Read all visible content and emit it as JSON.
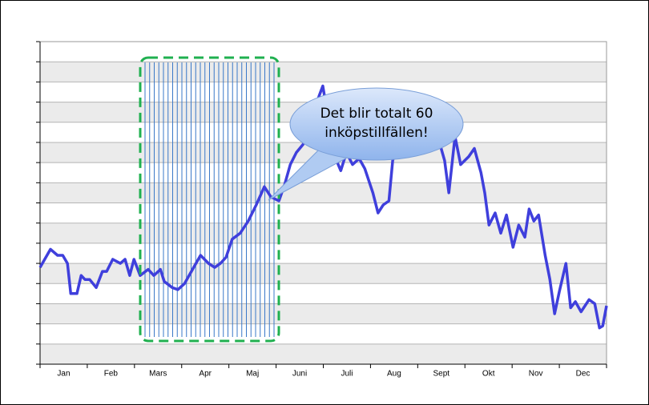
{
  "chart_data": {
    "type": "line",
    "annotation": [
      "Det blir totalt 60",
      "inköpstillfällen!"
    ],
    "categories": [
      "Jan",
      "Feb",
      "Mars",
      "Apr",
      "Maj",
      "Juni",
      "Juli",
      "Aug",
      "Sept",
      "Okt",
      "Nov",
      "Dec"
    ],
    "xlim": [
      0,
      12
    ],
    "ylim": [
      0,
      16
    ],
    "yticks": [
      0,
      1,
      2,
      3,
      4,
      5,
      6,
      7,
      8,
      9,
      10,
      11,
      12,
      13,
      14,
      15,
      16
    ],
    "grid": true,
    "series": [
      {
        "color": "#3f3fdc",
        "x": [
          0,
          0.22,
          0.37,
          0.48,
          0.58,
          0.65,
          0.78,
          0.87,
          0.95,
          1.05,
          1.19,
          1.32,
          1.41,
          1.54,
          1.7,
          1.8,
          1.9,
          1.99,
          2.12,
          2.29,
          2.41,
          2.55,
          2.63,
          2.8,
          2.92,
          3.06,
          3.23,
          3.4,
          3.57,
          3.7,
          3.82,
          3.94,
          4.07,
          4.24,
          4.41,
          4.58,
          4.75,
          4.89,
          5.06,
          5.18,
          5.3,
          5.43,
          5.57,
          5.69,
          5.81,
          5.91,
          5.99,
          6.11,
          6.28,
          6.37,
          6.49,
          6.62,
          6.76,
          6.88,
          7.05,
          7.16,
          7.27,
          7.39,
          7.47,
          7.56,
          7.67,
          7.89,
          8.15,
          8.4,
          8.57,
          8.66,
          8.79,
          8.91,
          9.08,
          9.2,
          9.34,
          9.42,
          9.51,
          9.64,
          9.76,
          9.88,
          10.02,
          10.14,
          10.27,
          10.36,
          10.46,
          10.56,
          10.7,
          10.8,
          10.9,
          11.0,
          11.14,
          11.24,
          11.34,
          11.46,
          11.63,
          11.75,
          11.85,
          11.92,
          12.0
        ],
        "values": [
          4.8,
          5.7,
          5.4,
          5.4,
          5.0,
          3.5,
          3.5,
          4.4,
          4.2,
          4.2,
          3.8,
          4.6,
          4.6,
          5.2,
          5.0,
          5.2,
          4.4,
          5.2,
          4.4,
          4.7,
          4.4,
          4.7,
          4.1,
          3.8,
          3.7,
          4.0,
          4.7,
          5.4,
          5.0,
          4.8,
          5.0,
          5.3,
          6.2,
          6.5,
          7.1,
          7.9,
          8.8,
          8.3,
          8.1,
          8.9,
          9.9,
          10.5,
          10.9,
          11.7,
          12.5,
          13.3,
          13.8,
          12.1,
          10.1,
          9.6,
          10.5,
          9.9,
          10.2,
          9.7,
          8.5,
          7.5,
          7.9,
          8.1,
          10.1,
          10.7,
          11.3,
          11.7,
          11.9,
          11.5,
          10.1,
          8.5,
          11.3,
          9.9,
          10.3,
          10.7,
          9.5,
          8.5,
          6.9,
          7.5,
          6.5,
          7.4,
          5.8,
          6.9,
          6.3,
          7.7,
          7.1,
          7.4,
          5.4,
          4.2,
          2.5,
          3.6,
          5.0,
          2.8,
          3.1,
          2.6,
          3.2,
          3.0,
          1.8,
          1.9,
          2.9
        ]
      }
    ]
  }
}
